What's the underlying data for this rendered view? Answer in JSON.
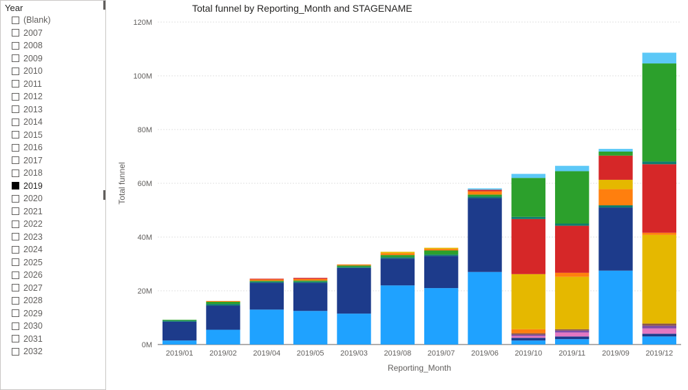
{
  "slicer": {
    "header": "Year",
    "items": [
      {
        "label": "(Blank)",
        "selected": false
      },
      {
        "label": "2007",
        "selected": false
      },
      {
        "label": "2008",
        "selected": false
      },
      {
        "label": "2009",
        "selected": false
      },
      {
        "label": "2010",
        "selected": false
      },
      {
        "label": "2011",
        "selected": false
      },
      {
        "label": "2012",
        "selected": false
      },
      {
        "label": "2013",
        "selected": false
      },
      {
        "label": "2014",
        "selected": false
      },
      {
        "label": "2015",
        "selected": false
      },
      {
        "label": "2016",
        "selected": false
      },
      {
        "label": "2017",
        "selected": false
      },
      {
        "label": "2018",
        "selected": false
      },
      {
        "label": "2019",
        "selected": true
      },
      {
        "label": "2020",
        "selected": false
      },
      {
        "label": "2021",
        "selected": false
      },
      {
        "label": "2022",
        "selected": false
      },
      {
        "label": "2023",
        "selected": false
      },
      {
        "label": "2024",
        "selected": false
      },
      {
        "label": "2025",
        "selected": false
      },
      {
        "label": "2026",
        "selected": false
      },
      {
        "label": "2027",
        "selected": false
      },
      {
        "label": "2028",
        "selected": false
      },
      {
        "label": "2029",
        "selected": false
      },
      {
        "label": "2030",
        "selected": false
      },
      {
        "label": "2031",
        "selected": false
      },
      {
        "label": "2032",
        "selected": false
      }
    ]
  },
  "chart": {
    "type": "stacked-bar",
    "title": "Total funnel by Reporting_Month and STAGENAME",
    "y_axis": {
      "title": "Total funnel",
      "min": 0,
      "max": 120,
      "ticks": [
        0,
        20,
        40,
        60,
        80,
        100,
        120
      ],
      "tick_labels": [
        "0M",
        "20M",
        "40M",
        "60M",
        "80M",
        "100M",
        "120M"
      ]
    },
    "x_axis": {
      "title": "Reporting_Month",
      "categories": [
        "2019/01",
        "2019/02",
        "2019/04",
        "2019/05",
        "2019/03",
        "2019/08",
        "2019/07",
        "2019/06",
        "2019/10",
        "2019/11",
        "2019/09",
        "2019/12"
      ]
    },
    "stage_colors": {
      "lightblue": "#1fa2ff",
      "navy": "#1d3b8b",
      "teal_d": "#0f7d6e",
      "green": "#2ca02c",
      "orange": "#ff7f0e",
      "red": "#d62728",
      "yellow": "#e5b800",
      "purple": "#7b4ea8",
      "magenta": "#e377c2",
      "brown": "#8c564b",
      "skytop": "#5cc8f7"
    },
    "grid_color": "#e0e0e0",
    "axis_color": "#605e5c",
    "background": "#ffffff",
    "bar_width_ratio": 0.78,
    "font_family": "Segoe UI",
    "label_fontsize": 11,
    "title_fontsize": 14,
    "series": [
      {
        "cat": "2019/01",
        "stacks": [
          {
            "c": "lightblue",
            "v": 1.5
          },
          {
            "c": "navy",
            "v": 7.0
          },
          {
            "c": "teal_d",
            "v": 0.4
          },
          {
            "c": "green",
            "v": 0.3
          }
        ]
      },
      {
        "cat": "2019/02",
        "stacks": [
          {
            "c": "lightblue",
            "v": 5.5
          },
          {
            "c": "navy",
            "v": 9.0
          },
          {
            "c": "teal_d",
            "v": 0.6
          },
          {
            "c": "green",
            "v": 0.8
          },
          {
            "c": "orange",
            "v": 0.3
          }
        ]
      },
      {
        "cat": "2019/04",
        "stacks": [
          {
            "c": "lightblue",
            "v": 13.0
          },
          {
            "c": "navy",
            "v": 10.0
          },
          {
            "c": "teal_d",
            "v": 0.4
          },
          {
            "c": "green",
            "v": 0.3
          },
          {
            "c": "orange",
            "v": 0.5
          },
          {
            "c": "red",
            "v": 0.3
          }
        ]
      },
      {
        "cat": "2019/05",
        "stacks": [
          {
            "c": "lightblue",
            "v": 12.5
          },
          {
            "c": "navy",
            "v": 10.5
          },
          {
            "c": "teal_d",
            "v": 0.4
          },
          {
            "c": "green",
            "v": 0.4
          },
          {
            "c": "orange",
            "v": 0.6
          },
          {
            "c": "red",
            "v": 0.4
          }
        ]
      },
      {
        "cat": "2019/03",
        "stacks": [
          {
            "c": "lightblue",
            "v": 11.5
          },
          {
            "c": "navy",
            "v": 17.0
          },
          {
            "c": "teal_d",
            "v": 0.4
          },
          {
            "c": "green",
            "v": 0.5
          },
          {
            "c": "orange",
            "v": 0.4
          }
        ]
      },
      {
        "cat": "2019/08",
        "stacks": [
          {
            "c": "lightblue",
            "v": 22.0
          },
          {
            "c": "navy",
            "v": 10.0
          },
          {
            "c": "teal_d",
            "v": 0.5
          },
          {
            "c": "green",
            "v": 0.8
          },
          {
            "c": "orange",
            "v": 0.7
          },
          {
            "c": "yellow",
            "v": 0.5
          }
        ]
      },
      {
        "cat": "2019/07",
        "stacks": [
          {
            "c": "lightblue",
            "v": 21.0
          },
          {
            "c": "navy",
            "v": 12.0
          },
          {
            "c": "teal_d",
            "v": 0.5
          },
          {
            "c": "green",
            "v": 1.5
          },
          {
            "c": "orange",
            "v": 0.6
          },
          {
            "c": "yellow",
            "v": 0.4
          }
        ]
      },
      {
        "cat": "2019/06",
        "stacks": [
          {
            "c": "lightblue",
            "v": 27.0
          },
          {
            "c": "navy",
            "v": 27.5
          },
          {
            "c": "teal_d",
            "v": 0.6
          },
          {
            "c": "green",
            "v": 0.7
          },
          {
            "c": "orange",
            "v": 1.2
          },
          {
            "c": "red",
            "v": 0.6
          },
          {
            "c": "skytop",
            "v": 0.5
          }
        ]
      },
      {
        "cat": "2019/10",
        "stacks": [
          {
            "c": "lightblue",
            "v": 1.5
          },
          {
            "c": "navy",
            "v": 1.0
          },
          {
            "c": "magenta",
            "v": 0.7
          },
          {
            "c": "purple",
            "v": 0.5
          },
          {
            "c": "brown",
            "v": 0.5
          },
          {
            "c": "orange",
            "v": 1.5
          },
          {
            "c": "yellow",
            "v": 20.5
          },
          {
            "c": "red",
            "v": 20.5
          },
          {
            "c": "teal_d",
            "v": 0.8
          },
          {
            "c": "green",
            "v": 14.5
          },
          {
            "c": "skytop",
            "v": 1.5
          }
        ]
      },
      {
        "cat": "2019/11",
        "stacks": [
          {
            "c": "lightblue",
            "v": 2.0
          },
          {
            "c": "navy",
            "v": 1.0
          },
          {
            "c": "magenta",
            "v": 1.5
          },
          {
            "c": "purple",
            "v": 0.7
          },
          {
            "c": "brown",
            "v": 0.5
          },
          {
            "c": "yellow",
            "v": 19.5
          },
          {
            "c": "orange",
            "v": 1.5
          },
          {
            "c": "red",
            "v": 17.5
          },
          {
            "c": "teal_d",
            "v": 0.8
          },
          {
            "c": "green",
            "v": 19.5
          },
          {
            "c": "skytop",
            "v": 2.0
          }
        ]
      },
      {
        "cat": "2019/09",
        "stacks": [
          {
            "c": "lightblue",
            "v": 27.5
          },
          {
            "c": "navy",
            "v": 23.5
          },
          {
            "c": "teal_d",
            "v": 0.8
          },
          {
            "c": "orange",
            "v": 6.0
          },
          {
            "c": "yellow",
            "v": 3.5
          },
          {
            "c": "red",
            "v": 9.0
          },
          {
            "c": "green",
            "v": 1.5
          },
          {
            "c": "skytop",
            "v": 1.0
          }
        ]
      },
      {
        "cat": "2019/12",
        "stacks": [
          {
            "c": "lightblue",
            "v": 3.0
          },
          {
            "c": "navy",
            "v": 1.0
          },
          {
            "c": "magenta",
            "v": 2.0
          },
          {
            "c": "purple",
            "v": 1.0
          },
          {
            "c": "brown",
            "v": 0.8
          },
          {
            "c": "yellow",
            "v": 33.0
          },
          {
            "c": "orange",
            "v": 0.8
          },
          {
            "c": "red",
            "v": 25.5
          },
          {
            "c": "teal_d",
            "v": 1.0
          },
          {
            "c": "green",
            "v": 36.5
          },
          {
            "c": "skytop",
            "v": 4.0
          }
        ]
      }
    ]
  }
}
